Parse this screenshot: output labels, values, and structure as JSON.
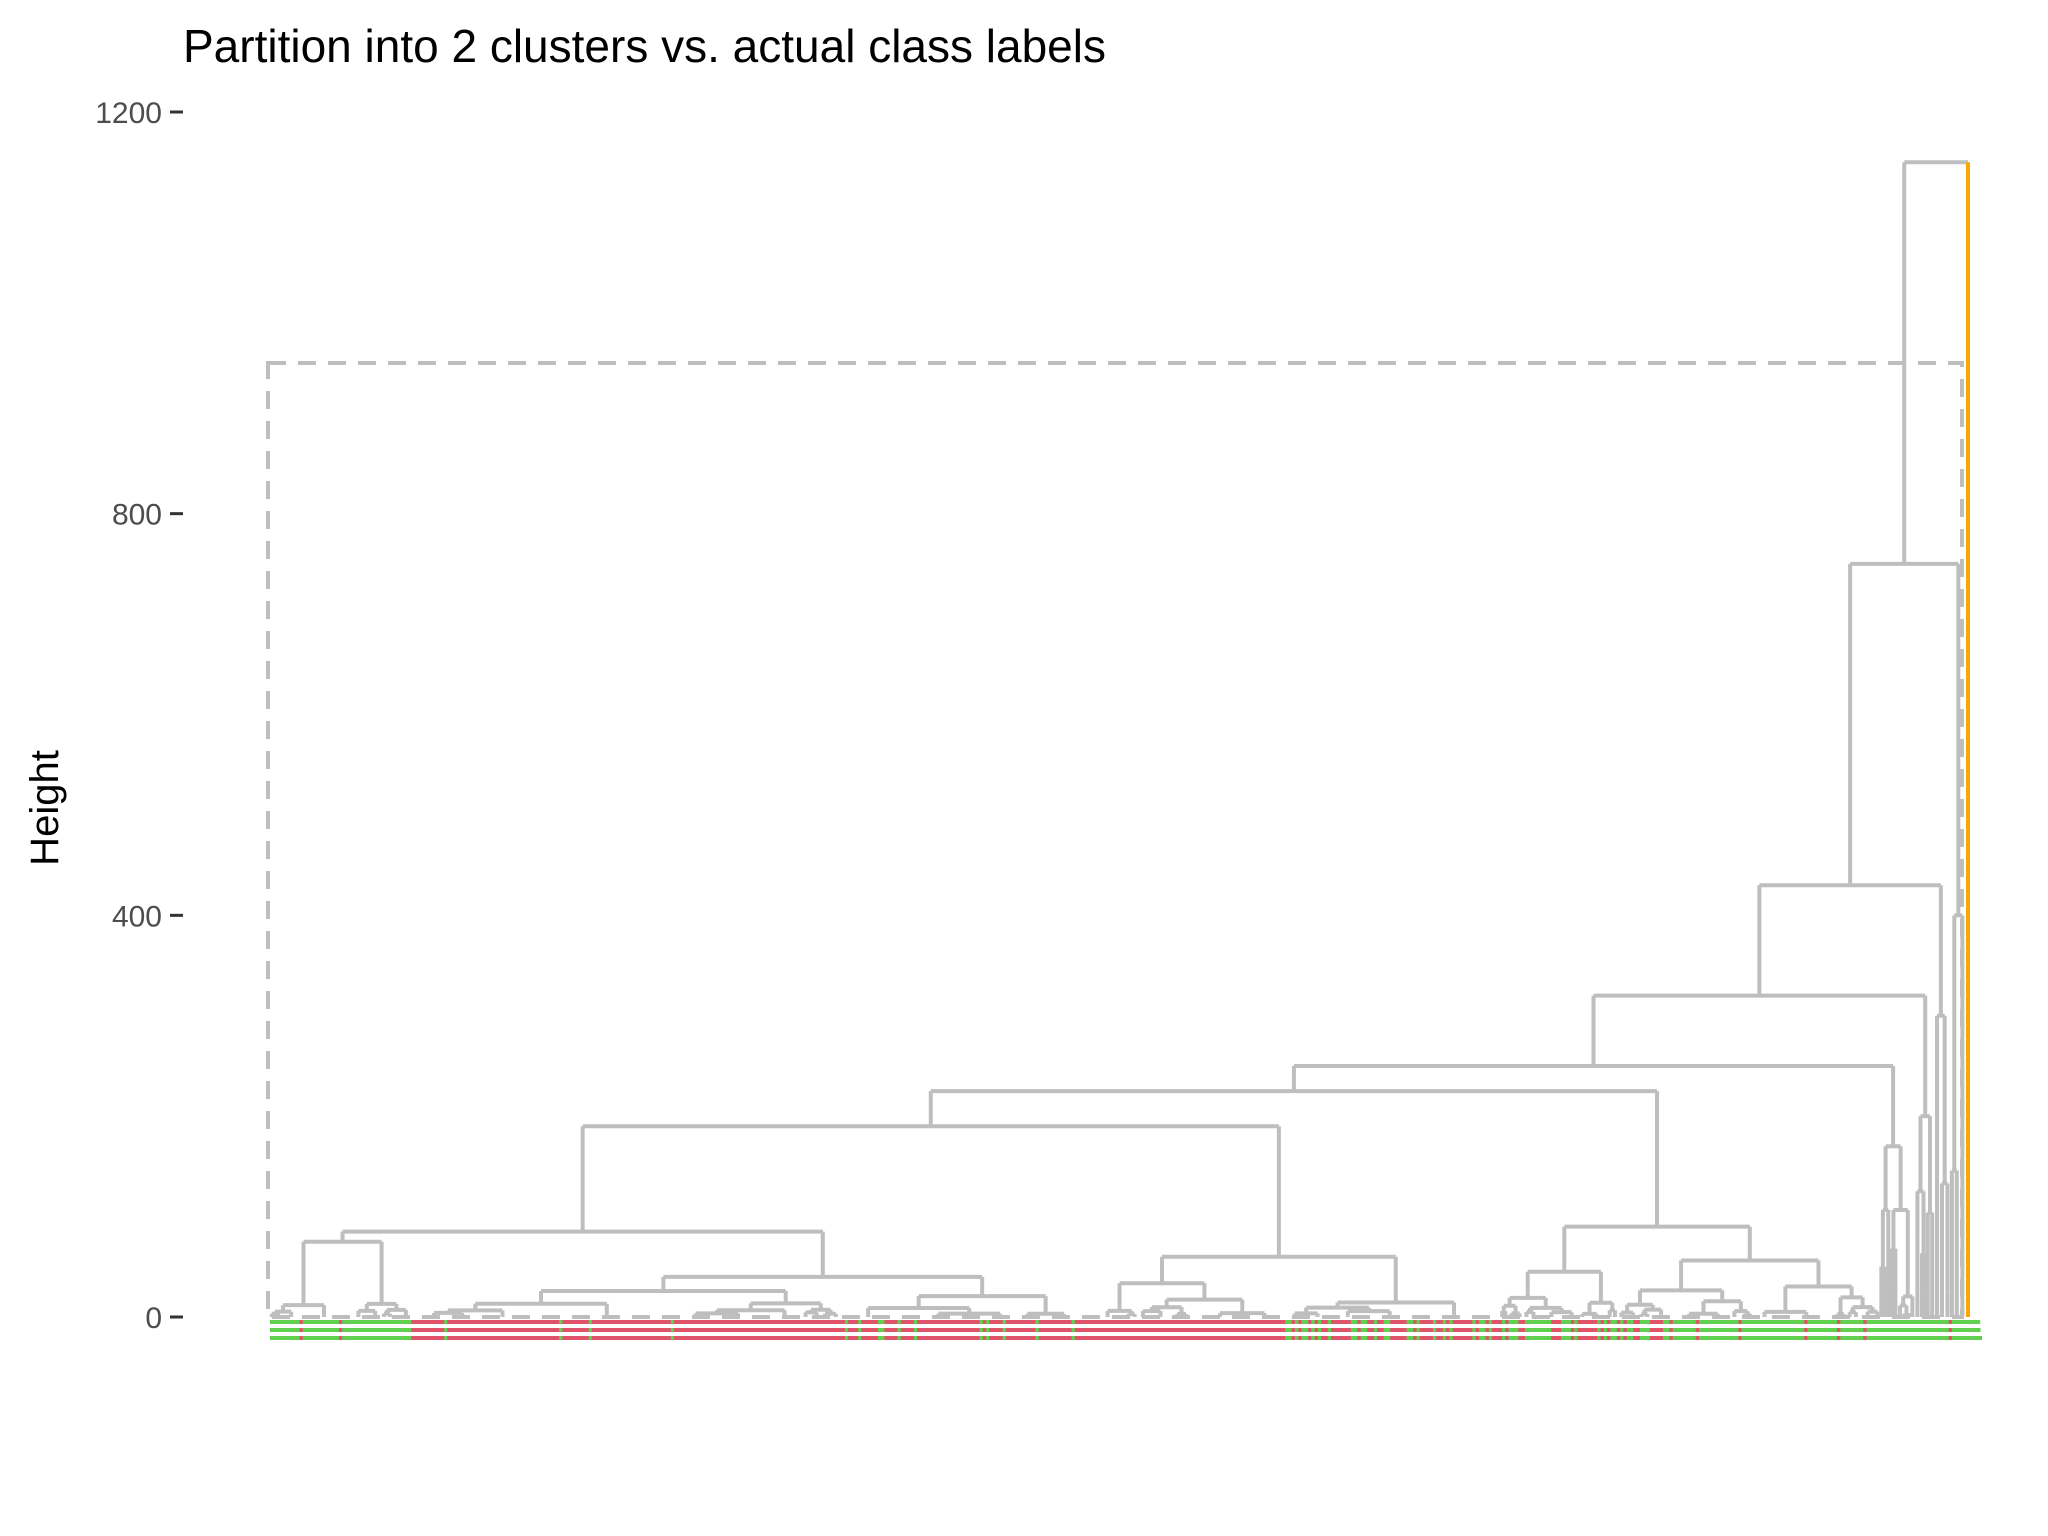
{
  "chart_data": {
    "type": "dendrogram",
    "title": "Partition into 2 clusters vs. actual class labels",
    "xlabel": "",
    "ylabel": "Height",
    "ylim": [
      0,
      1200
    ],
    "y_ticks": [
      0,
      400,
      800,
      1200
    ],
    "y_tick_labels": [
      "0",
      "400",
      "800",
      "1200"
    ],
    "grid": false,
    "k_clusters": 2,
    "cut_height": 950,
    "cluster_colors": [
      "#bebebe",
      "#ffa500"
    ],
    "label_colors": [
      "#df536b",
      "#61d04f"
    ],
    "merge_heights": [
      1150,
      750,
      430,
      320,
      250,
      230,
      225,
      200,
      190,
      180,
      170,
      140,
      120,
      100,
      90,
      85,
      80,
      75,
      60,
      50,
      40,
      35,
      30,
      25,
      20
    ]
  }
}
